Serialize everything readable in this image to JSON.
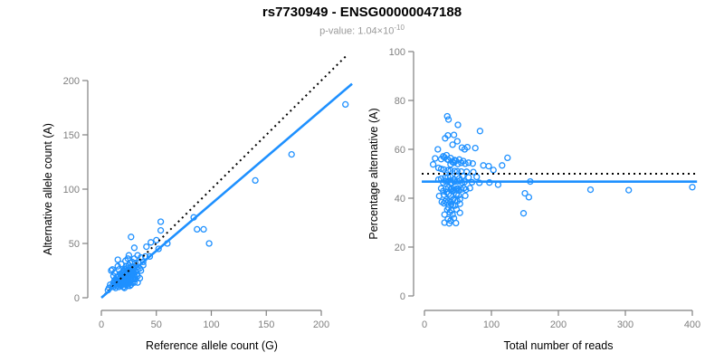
{
  "header": {
    "title": "rs7730949 - ENSG00000047188",
    "pvalue": {
      "text": "p-value: 1.04×10",
      "exponent": "-10"
    }
  },
  "colors": {
    "accent": "#1E90FF",
    "dotted_line": "#000000",
    "axis_line": "#808080",
    "tick_label": "#7F7F7F",
    "axis_title": "#000000",
    "title": "#000000",
    "subtitle": "#9A9A9A",
    "background": "#FFFFFF"
  },
  "chart_data": [
    {
      "name": "ref-vs-alt-scatter",
      "type": "scatter",
      "title": "",
      "xlabel": "Reference allele count (G)",
      "ylabel": "Alternative allele count (A)",
      "xticks": [
        0,
        50,
        100,
        150,
        200
      ],
      "yticks": [
        0,
        50,
        100,
        150,
        200
      ],
      "xlim": [
        0,
        230
      ],
      "ylim": [
        0,
        225
      ],
      "grid": false,
      "legend": "none",
      "lines": [
        {
          "name": "identity-line",
          "style": "dotted",
          "color": "#000000",
          "from": [
            3,
            3
          ],
          "to": [
            224,
            224
          ]
        },
        {
          "name": "regression-line",
          "style": "solid",
          "color": "#1E90FF",
          "from": [
            0,
            0
          ],
          "to": [
            228,
            197
          ]
        }
      ],
      "points": [
        [
          9,
          25
        ],
        [
          10,
          26
        ],
        [
          15,
          35
        ],
        [
          27,
          56
        ],
        [
          12,
          23
        ],
        [
          15,
          29
        ],
        [
          11,
          20
        ],
        [
          18,
          31
        ],
        [
          22,
          34
        ],
        [
          25,
          39
        ],
        [
          30,
          46
        ],
        [
          16,
          26
        ],
        [
          24,
          36
        ],
        [
          54,
          70
        ],
        [
          54,
          62
        ],
        [
          12,
          16
        ],
        [
          14,
          19
        ],
        [
          17,
          22
        ],
        [
          20,
          25
        ],
        [
          23,
          29
        ],
        [
          16,
          20
        ],
        [
          19,
          23
        ],
        [
          26,
          32
        ],
        [
          13,
          17
        ],
        [
          21,
          26
        ],
        [
          30,
          36
        ],
        [
          11,
          14
        ],
        [
          18,
          21
        ],
        [
          25,
          30
        ],
        [
          33,
          39
        ],
        [
          41,
          47
        ],
        [
          15,
          19
        ],
        [
          20,
          24
        ],
        [
          23,
          27
        ],
        [
          28,
          33
        ],
        [
          45,
          51
        ],
        [
          50,
          53
        ],
        [
          84,
          74
        ],
        [
          10,
          11
        ],
        [
          14,
          15
        ],
        [
          17,
          18
        ],
        [
          22,
          23
        ],
        [
          27,
          28
        ],
        [
          12,
          13
        ],
        [
          19,
          20
        ],
        [
          24,
          25
        ],
        [
          31,
          32
        ],
        [
          36,
          37
        ],
        [
          16,
          15
        ],
        [
          20,
          19
        ],
        [
          25,
          24
        ],
        [
          29,
          28
        ],
        [
          13,
          12
        ],
        [
          18,
          17
        ],
        [
          23,
          21
        ],
        [
          27,
          25
        ],
        [
          34,
          32
        ],
        [
          40,
          38
        ],
        [
          15,
          13
        ],
        [
          19,
          17
        ],
        [
          24,
          21
        ],
        [
          28,
          25
        ],
        [
          11,
          10
        ],
        [
          22,
          19
        ],
        [
          26,
          23
        ],
        [
          32,
          28
        ],
        [
          38,
          33
        ],
        [
          17,
          15
        ],
        [
          21,
          18
        ],
        [
          30,
          26
        ],
        [
          44,
          38
        ],
        [
          52,
          45
        ],
        [
          60,
          50
        ],
        [
          18,
          14
        ],
        [
          23,
          18
        ],
        [
          28,
          22
        ],
        [
          33,
          26
        ],
        [
          14,
          11
        ],
        [
          20,
          16
        ],
        [
          26,
          20
        ],
        [
          31,
          24
        ],
        [
          38,
          30
        ],
        [
          16,
          12
        ],
        [
          22,
          17
        ],
        [
          27,
          21
        ],
        [
          35,
          27
        ],
        [
          24,
          18
        ],
        [
          29,
          22
        ],
        [
          19,
          14
        ],
        [
          25,
          19
        ],
        [
          87,
          63
        ],
        [
          93,
          63
        ],
        [
          13,
          9
        ],
        [
          21,
          15
        ],
        [
          28,
          20
        ],
        [
          17,
          12
        ],
        [
          23,
          16
        ],
        [
          30,
          21
        ],
        [
          36,
          25
        ],
        [
          20,
          13
        ],
        [
          26,
          17
        ],
        [
          32,
          21
        ],
        [
          16,
          10
        ],
        [
          22,
          14
        ],
        [
          28,
          18
        ],
        [
          24,
          15
        ],
        [
          19,
          12
        ],
        [
          30,
          19
        ],
        [
          25,
          15
        ],
        [
          21,
          13
        ],
        [
          18,
          11
        ],
        [
          27,
          16
        ],
        [
          33,
          20
        ],
        [
          23,
          13
        ],
        [
          29,
          17
        ],
        [
          26,
          14
        ],
        [
          22,
          12
        ],
        [
          31,
          17
        ],
        [
          25,
          13
        ],
        [
          20,
          10
        ],
        [
          28,
          14
        ],
        [
          35,
          18
        ],
        [
          24,
          11
        ],
        [
          30,
          14
        ],
        [
          27,
          12
        ],
        [
          21,
          9
        ],
        [
          33,
          14
        ],
        [
          26,
          11
        ],
        [
          7,
          9
        ],
        [
          8,
          12
        ],
        [
          6,
          7
        ],
        [
          98,
          50
        ],
        [
          140,
          108
        ],
        [
          173,
          132
        ],
        [
          222,
          178
        ]
      ]
    },
    {
      "name": "pct-vs-total-scatter",
      "type": "scatter",
      "title": "",
      "xlabel": "Total number of reads",
      "ylabel": "Percentage alternative (A)",
      "xticks": [
        0,
        100,
        200,
        300,
        400
      ],
      "yticks": [
        0,
        20,
        40,
        60,
        80,
        100
      ],
      "xlim": [
        0,
        410
      ],
      "ylim": [
        0,
        100
      ],
      "grid": false,
      "legend": "none",
      "lines": [
        {
          "name": "expected-50pct-line",
          "style": "dotted",
          "color": "#000000",
          "from": [
            -4,
            50
          ],
          "to": [
            407,
            50
          ]
        },
        {
          "name": "mean-percentage-line",
          "style": "solid",
          "color": "#1E90FF",
          "from": [
            -4,
            46.8
          ],
          "to": [
            407,
            46.8
          ]
        }
      ],
      "points": [
        [
          34,
          73.5
        ],
        [
          36,
          72.2
        ],
        [
          50,
          70.0
        ],
        [
          83,
          67.5
        ],
        [
          35,
          65.7
        ],
        [
          44,
          65.9
        ],
        [
          31,
          64.5
        ],
        [
          49,
          63.3
        ],
        [
          56,
          60.7
        ],
        [
          64,
          60.9
        ],
        [
          76,
          60.5
        ],
        [
          42,
          61.9
        ],
        [
          60,
          60.0
        ],
        [
          124,
          56.5
        ],
        [
          116,
          53.4
        ],
        [
          28,
          57.1
        ],
        [
          33,
          57.6
        ],
        [
          39,
          56.4
        ],
        [
          45,
          55.6
        ],
        [
          52,
          55.8
        ],
        [
          36,
          55.6
        ],
        [
          42,
          54.8
        ],
        [
          58,
          55.2
        ],
        [
          30,
          56.7
        ],
        [
          47,
          55.3
        ],
        [
          66,
          54.5
        ],
        [
          25,
          56.0
        ],
        [
          39,
          53.8
        ],
        [
          55,
          54.5
        ],
        [
          72,
          54.2
        ],
        [
          88,
          53.4
        ],
        [
          34,
          55.9
        ],
        [
          44,
          54.5
        ],
        [
          50,
          54.0
        ],
        [
          61,
          54.1
        ],
        [
          96,
          53.1
        ],
        [
          103,
          51.5
        ],
        [
          158,
          46.8
        ],
        [
          21,
          52.4
        ],
        [
          29,
          51.7
        ],
        [
          35,
          51.4
        ],
        [
          45,
          51.1
        ],
        [
          55,
          50.9
        ],
        [
          25,
          52.0
        ],
        [
          39,
          51.3
        ],
        [
          49,
          51.0
        ],
        [
          63,
          50.8
        ],
        [
          73,
          50.7
        ],
        [
          31,
          48.4
        ],
        [
          39,
          48.7
        ],
        [
          49,
          49.0
        ],
        [
          57,
          49.1
        ],
        [
          25,
          48.0
        ],
        [
          35,
          48.6
        ],
        [
          44,
          47.7
        ],
        [
          52,
          48.1
        ],
        [
          66,
          48.5
        ],
        [
          78,
          48.7
        ],
        [
          28,
          46.4
        ],
        [
          36,
          47.2
        ],
        [
          45,
          46.7
        ],
        [
          53,
          47.2
        ],
        [
          21,
          47.6
        ],
        [
          41,
          46.3
        ],
        [
          49,
          46.9
        ],
        [
          60,
          46.7
        ],
        [
          71,
          46.5
        ],
        [
          32,
          46.9
        ],
        [
          39,
          46.2
        ],
        [
          56,
          46.4
        ],
        [
          82,
          46.3
        ],
        [
          97,
          46.4
        ],
        [
          110,
          45.5
        ],
        [
          32,
          43.8
        ],
        [
          41,
          43.9
        ],
        [
          50,
          44.0
        ],
        [
          59,
          44.1
        ],
        [
          25,
          44.0
        ],
        [
          36,
          44.4
        ],
        [
          46,
          43.5
        ],
        [
          55,
          43.6
        ],
        [
          68,
          44.1
        ],
        [
          28,
          42.9
        ],
        [
          39,
          43.6
        ],
        [
          48,
          43.8
        ],
        [
          62,
          43.5
        ],
        [
          42,
          42.9
        ],
        [
          51,
          43.1
        ],
        [
          33,
          42.4
        ],
        [
          44,
          43.2
        ],
        [
          150,
          42.0
        ],
        [
          156,
          40.4
        ],
        [
          22,
          40.9
        ],
        [
          36,
          41.7
        ],
        [
          48,
          41.7
        ],
        [
          29,
          41.4
        ],
        [
          39,
          41.0
        ],
        [
          51,
          41.2
        ],
        [
          61,
          41.0
        ],
        [
          33,
          39.4
        ],
        [
          43,
          39.5
        ],
        [
          53,
          39.6
        ],
        [
          26,
          38.5
        ],
        [
          36,
          38.9
        ],
        [
          46,
          39.1
        ],
        [
          39,
          38.5
        ],
        [
          31,
          38.7
        ],
        [
          49,
          38.8
        ],
        [
          40,
          37.5
        ],
        [
          34,
          38.2
        ],
        [
          29,
          37.9
        ],
        [
          43,
          37.2
        ],
        [
          53,
          37.7
        ],
        [
          36,
          36.1
        ],
        [
          46,
          37.0
        ],
        [
          40,
          35.0
        ],
        [
          34,
          35.3
        ],
        [
          48,
          35.4
        ],
        [
          38,
          34.2
        ],
        [
          30,
          33.3
        ],
        [
          42,
          33.3
        ],
        [
          53,
          34.0
        ],
        [
          35,
          31.4
        ],
        [
          44,
          31.8
        ],
        [
          39,
          30.8
        ],
        [
          30,
          30.0
        ],
        [
          47,
          29.8
        ],
        [
          37,
          29.7
        ],
        [
          16,
          56.3
        ],
        [
          20,
          60.0
        ],
        [
          13,
          53.8
        ],
        [
          148,
          33.8
        ],
        [
          248,
          43.5
        ],
        [
          305,
          43.3
        ],
        [
          400,
          44.5
        ]
      ]
    }
  ]
}
